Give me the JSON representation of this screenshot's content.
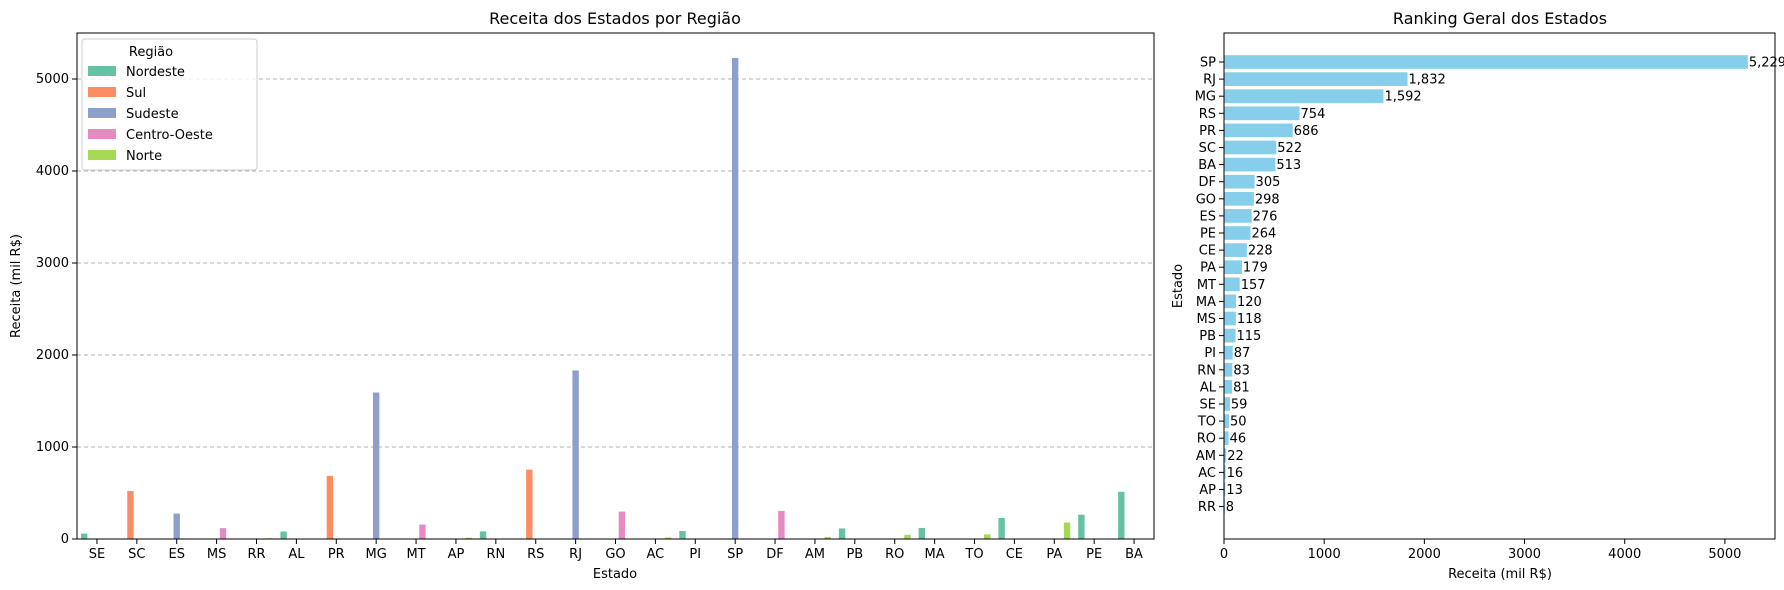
{
  "chart_data": [
    {
      "type": "bar",
      "title": "Receita dos Estados por Região",
      "xlabel": "Estado",
      "ylabel": "Receita (mil R$)",
      "ylim": [
        0,
        5500
      ],
      "yticks": [
        0,
        1000,
        2000,
        3000,
        4000,
        5000
      ],
      "grid": "y-dashed",
      "legend": {
        "title": "Região",
        "placement": "top-left",
        "entries": [
          {
            "name": "Nordeste",
            "color": "#66c2a5"
          },
          {
            "name": "Sul",
            "color": "#fc8d62"
          },
          {
            "name": "Sudeste",
            "color": "#8da0cb"
          },
          {
            "name": "Centro-Oeste",
            "color": "#e78ac3"
          },
          {
            "name": "Norte",
            "color": "#a6d854"
          }
        ]
      },
      "categories": [
        "SE",
        "SC",
        "ES",
        "MS",
        "RR",
        "AL",
        "PR",
        "MG",
        "MT",
        "AP",
        "RN",
        "RS",
        "RJ",
        "GO",
        "AC",
        "PI",
        "SP",
        "DF",
        "AM",
        "PB",
        "RO",
        "MA",
        "TO",
        "CE",
        "PA",
        "PE",
        "BA"
      ],
      "values": [
        59,
        522,
        276,
        118,
        8,
        81,
        686,
        1592,
        157,
        13,
        83,
        754,
        1832,
        298,
        16,
        87,
        5229,
        305,
        22,
        115,
        46,
        120,
        50,
        228,
        179,
        264,
        513
      ],
      "regions": [
        "Nordeste",
        "Sul",
        "Sudeste",
        "Centro-Oeste",
        "Norte",
        "Nordeste",
        "Sul",
        "Sudeste",
        "Centro-Oeste",
        "Norte",
        "Nordeste",
        "Sul",
        "Sudeste",
        "Centro-Oeste",
        "Norte",
        "Nordeste",
        "Sudeste",
        "Centro-Oeste",
        "Norte",
        "Nordeste",
        "Norte",
        "Nordeste",
        "Norte",
        "Nordeste",
        "Norte",
        "Nordeste",
        "Nordeste"
      ]
    },
    {
      "type": "bar",
      "orientation": "horizontal",
      "title": "Ranking Geral dos Estados",
      "xlabel": "Receita (mil R$)",
      "ylabel": "Estado",
      "xlim": [
        0,
        5500
      ],
      "xticks": [
        0,
        1000,
        2000,
        3000,
        4000,
        5000
      ],
      "color": "#87ceeb",
      "categories": [
        "SP",
        "RJ",
        "MG",
        "RS",
        "PR",
        "SC",
        "BA",
        "DF",
        "GO",
        "ES",
        "PE",
        "CE",
        "PA",
        "MT",
        "MA",
        "MS",
        "PB",
        "PI",
        "RN",
        "AL",
        "SE",
        "TO",
        "RO",
        "AM",
        "AC",
        "AP",
        "RR"
      ],
      "values": [
        5229,
        1832,
        1592,
        754,
        686,
        522,
        513,
        305,
        298,
        276,
        264,
        228,
        179,
        157,
        120,
        118,
        115,
        87,
        83,
        81,
        59,
        50,
        46,
        22,
        16,
        13,
        8
      ],
      "labels": [
        "5,229",
        "1,832",
        "1,592",
        "754",
        "686",
        "522",
        "513",
        "305",
        "298",
        "276",
        "264",
        "228",
        "179",
        "157",
        "120",
        "118",
        "115",
        "87",
        "83",
        "81",
        "59",
        "50",
        "46",
        "22",
        "16",
        "13",
        "8"
      ]
    }
  ]
}
